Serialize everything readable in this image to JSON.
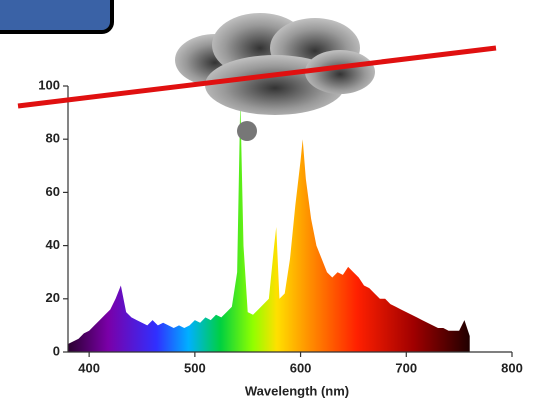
{
  "chart_data": {
    "type": "area",
    "x_label": "Wavelength (nm)",
    "x": [
      380,
      385,
      390,
      395,
      400,
      405,
      410,
      415,
      420,
      425,
      430,
      435,
      440,
      445,
      450,
      455,
      460,
      465,
      470,
      475,
      480,
      485,
      490,
      495,
      500,
      505,
      510,
      515,
      520,
      525,
      530,
      535,
      540,
      543,
      546,
      550,
      555,
      560,
      565,
      570,
      575,
      577,
      580,
      585,
      590,
      595,
      600,
      602,
      605,
      610,
      615,
      620,
      625,
      630,
      635,
      640,
      645,
      650,
      655,
      660,
      665,
      670,
      675,
      680,
      685,
      690,
      695,
      700,
      705,
      710,
      715,
      720,
      725,
      730,
      735,
      740,
      745,
      750,
      755,
      760
    ],
    "values": [
      3,
      4,
      5,
      7,
      8,
      10,
      12,
      14,
      16,
      20,
      25,
      15,
      13,
      12,
      11,
      10,
      12,
      10,
      11,
      10,
      9,
      10,
      9,
      10,
      12,
      11,
      13,
      12,
      14,
      13,
      15,
      17,
      30,
      95,
      40,
      15,
      14,
      16,
      18,
      20,
      40,
      47,
      20,
      22,
      35,
      55,
      72,
      80,
      65,
      50,
      40,
      35,
      30,
      28,
      30,
      29,
      32,
      30,
      28,
      25,
      24,
      22,
      20,
      20,
      18,
      17,
      16,
      15,
      14,
      13,
      12,
      11,
      10,
      9,
      9,
      8,
      8,
      8,
      12,
      6
    ],
    "xlim": [
      380,
      800
    ],
    "xticks": [
      400,
      500,
      600,
      700,
      800
    ],
    "ylim": [
      0,
      100
    ],
    "yticks": [
      0,
      20,
      40,
      60,
      80,
      100
    ]
  }
}
